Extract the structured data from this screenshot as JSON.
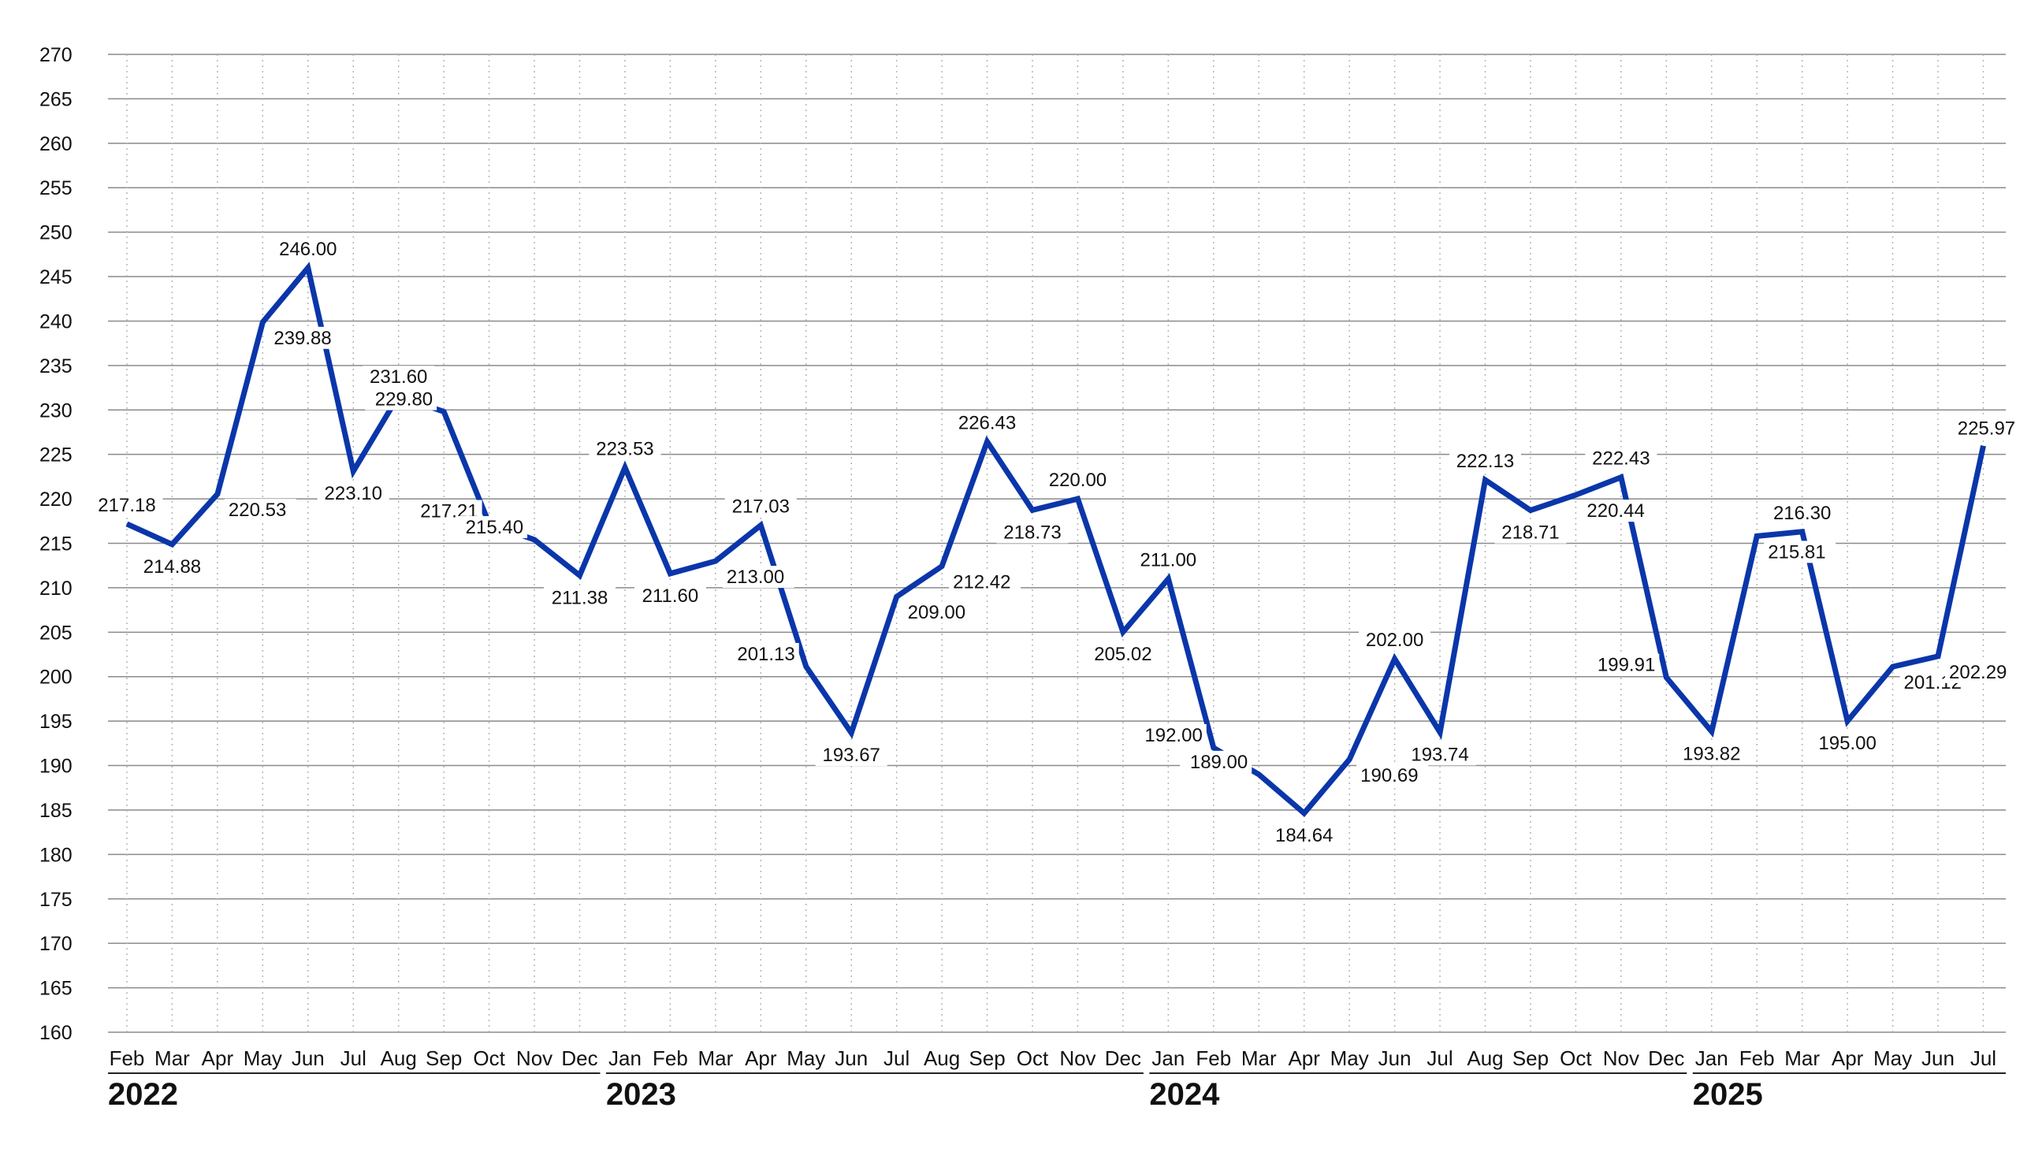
{
  "chart_data": {
    "type": "line",
    "title": "",
    "xlabel": "",
    "ylabel": "",
    "ylim": [
      160,
      270
    ],
    "y_ticks": [
      160,
      165,
      170,
      175,
      180,
      185,
      190,
      195,
      200,
      205,
      210,
      215,
      220,
      225,
      230,
      235,
      240,
      245,
      250,
      255,
      260,
      265,
      270
    ],
    "grid": "horizontal solid, vertical dotted",
    "line_color": "#0A36AA",
    "x": [
      "Feb",
      "Mar",
      "Apr",
      "May",
      "Jun",
      "Jul",
      "Aug",
      "Sep",
      "Oct",
      "Nov",
      "Dec",
      "Jan",
      "Feb",
      "Mar",
      "Apr",
      "May",
      "Jun",
      "Jul",
      "Aug",
      "Sep",
      "Oct",
      "Nov",
      "Dec",
      "Jan",
      "Feb",
      "Mar",
      "Apr",
      "May",
      "Jun",
      "Jul",
      "Aug",
      "Sep",
      "Oct",
      "Nov",
      "Dec",
      "Jan",
      "Feb",
      "Mar",
      "Apr",
      "May",
      "Jun",
      "Jul"
    ],
    "values": [
      217.18,
      214.88,
      220.53,
      239.88,
      246.0,
      223.1,
      231.6,
      229.8,
      217.21,
      215.4,
      211.38,
      223.53,
      211.6,
      213.0,
      217.03,
      201.13,
      193.67,
      209.0,
      212.42,
      226.43,
      218.73,
      220.0,
      205.02,
      211.0,
      192.0,
      189.0,
      184.64,
      190.69,
      202.0,
      193.74,
      222.13,
      218.71,
      220.44,
      222.43,
      199.91,
      193.82,
      215.81,
      216.3,
      195.0,
      201.12,
      202.29,
      225.97
    ],
    "labels": [
      "217.18",
      "214.88",
      "220.53",
      "239.88",
      "246.00",
      "223.10",
      "231.60",
      "229.80",
      "217.21",
      "215.40",
      "211.38",
      "223.53",
      "211.60",
      "213.00",
      "217.03",
      "201.13",
      "193.67",
      "209.00",
      "212.42",
      "226.43",
      "218.73",
      "220.00",
      "205.02",
      "211.00",
      "192.00",
      "189.00",
      "184.64",
      "190.69",
      "202.00",
      "193.74",
      "222.13",
      "218.71",
      "220.44",
      "222.43",
      "199.91",
      "193.82",
      "215.81",
      "216.30",
      "195.00",
      "201.12",
      "202.29",
      "225.97"
    ],
    "years": [
      {
        "label": "2022",
        "start": 0,
        "end": 10
      },
      {
        "label": "2023",
        "start": 11,
        "end": 22
      },
      {
        "label": "2024",
        "start": 23,
        "end": 34
      },
      {
        "label": "2025",
        "start": 35,
        "end": 41
      }
    ]
  }
}
